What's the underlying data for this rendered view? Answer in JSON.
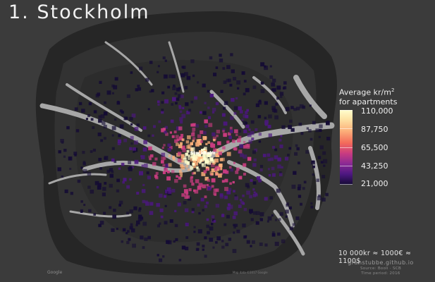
{
  "title": "1. Stockholm",
  "legend": {
    "title_line1": "Average kr/m",
    "title_sup": "2",
    "title_line2": "for apartments",
    "ticks": [
      "110,000",
      "87,750",
      "65,500",
      "43,250",
      "21,000"
    ],
    "tick_values": [
      110000,
      87750,
      65500,
      43250,
      21000
    ],
    "min": 21000,
    "max": 110000,
    "colors": [
      "#fffecd",
      "#fcb07a",
      "#c93c80",
      "#4c1780",
      "#140b34"
    ]
  },
  "footer": {
    "conversion": "10 000kr ≈ 1000€ ≈ 1100$",
    "site": "granstubbe.github.io",
    "source": "Source: Booli · SCB",
    "period": "Time period: 2016"
  },
  "attribution": {
    "google": "Google",
    "map_data": "Map data ©2017 Google"
  },
  "map": {
    "center_label": "Stockholm",
    "colors": {
      "background": "#3b3b3b",
      "land": "#2a2a2a",
      "water": "#a7a7a7"
    }
  }
}
